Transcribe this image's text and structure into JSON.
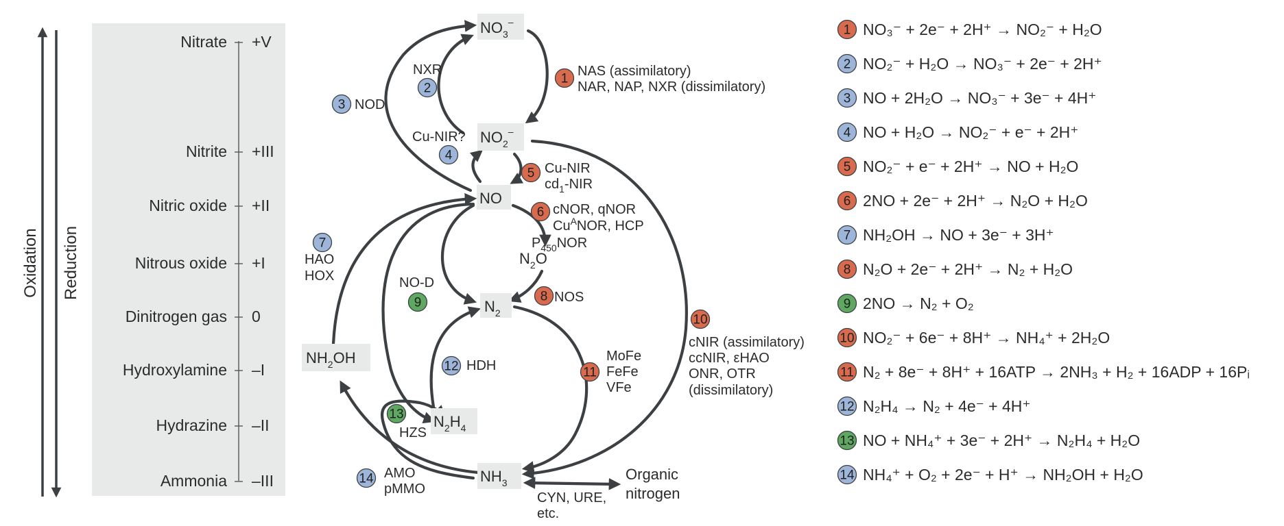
{
  "colors": {
    "panel": "#e8eaea",
    "arrow": "#3c4043",
    "axis": "#555555",
    "oxidation": "#9db5d8",
    "reduction": "#d86a4e",
    "other": "#5ea862"
  },
  "axis_labels": {
    "oxidation": "Oxidation",
    "reduction": "Reduction"
  },
  "oxidation_states": [
    {
      "name": "Nitrate",
      "state": "+V"
    },
    {
      "name": "Nitrite",
      "state": "+III"
    },
    {
      "name": "Nitric oxide",
      "state": "+II"
    },
    {
      "name": "Nitrous oxide",
      "state": "+I"
    },
    {
      "name": "Dinitrogen gas",
      "state": "0"
    },
    {
      "name": "Hydroxylamine",
      "state": "–I"
    },
    {
      "name": "Hydrazine",
      "state": "–II"
    },
    {
      "name": "Ammonia",
      "state": "–III"
    }
  ],
  "species": {
    "no3": {
      "base": "NO",
      "sub": "3",
      "sup": "–"
    },
    "no2": {
      "base": "NO",
      "sub": "2",
      "sup": "–"
    },
    "no": "NO",
    "n2o": {
      "a": "N",
      "sub": "2",
      "b": "O"
    },
    "n2": {
      "base": "N",
      "sub": "2"
    },
    "nh2oh": {
      "a": "NH",
      "sub": "2",
      "b": "OH"
    },
    "n2h4": {
      "a": "N",
      "sub1": "2",
      "b": "H",
      "sub2": "4"
    },
    "nh3": {
      "base": "NH",
      "sub": "3"
    },
    "organic": [
      "Organic",
      "nitrogen"
    ]
  },
  "badges": [
    "1",
    "2",
    "3",
    "4",
    "5",
    "6",
    "7",
    "8",
    "9",
    "10",
    "11",
    "12",
    "13",
    "14"
  ],
  "enzyme_labels": {
    "nas": "NAS (assimilatory)",
    "nar": "NAR, NAP, NXR (dissimilatory)",
    "nxr": "NXR",
    "nod": "NOD",
    "cunir_q": "Cu-NIR?",
    "cunir": "Cu-NIR",
    "cd1": {
      "a": "cd",
      "sub": "1",
      "b": "-NIR"
    },
    "nor1": "cNOR, qNOR",
    "nor2": {
      "a": "Cu",
      "sub": "A",
      "b": "NOR, HCP"
    },
    "nor3": {
      "a": "P",
      "sub": "450",
      "b": "NOR"
    },
    "nos": "NOS",
    "hao": "HAO",
    "hox": "HOX",
    "nod2": "NO-D",
    "hdh": "HDH",
    "mofe": "MoFe",
    "fefe": "FeFe",
    "vfe": "VFe",
    "cnir": "cNIR (assimilatory)",
    "ccnir": "ccNIR, εHAO",
    "onr": "ONR, OTR",
    "diss": "(dissimilatory)",
    "hzs": "HZS",
    "amo": "AMO",
    "pmmo": "pMMO",
    "cyn1": "CYN, URE,",
    "cyn2": "etc."
  },
  "equations": [
    "NO₃⁻ + 2e⁻ + 2H⁺ → NO₂⁻ + H₂O",
    "NO₂⁻ + H₂O → NO₃⁻ + 2e⁻ + 2H⁺",
    "NO + 2H₂O → NO₃⁻ + 3e⁻ + 4H⁺",
    "NO + H₂O → NO₂⁻ +  e⁻ + 2H⁺",
    "NO₂⁻ + e⁻ + 2H⁺ → NO + H₂O",
    "2NO + 2e⁻ + 2H⁺ → N₂O + H₂O",
    "NH₂OH →  NO + 3e⁻ + 3H⁺",
    "N₂O + 2e⁻ + 2H⁺ → N₂ + H₂O",
    "2NO → N₂ + O₂",
    "NO₂⁻ + 6e⁻ + 8H⁺ → NH₄⁺ + 2H₂O",
    "N₂ + 8e⁻ + 8H⁺ + 16ATP → 2NH₃ + H₂ + 16ADP + 16Pᵢ",
    "N₂H₄ → N₂ + 4e⁻ + 4H⁺",
    "NO + NH₄⁺ + 3e⁻ + 2H⁺ → N₂H₄ + H₂O",
    "NH₄⁺ + O₂ + 2e⁻ + H⁺ → NH₂OH + H₂O"
  ]
}
